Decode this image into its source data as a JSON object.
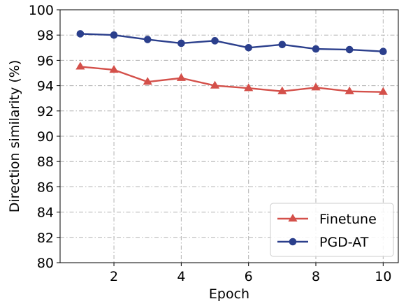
{
  "chart_data": {
    "type": "line",
    "title": "",
    "xlabel": "Epoch",
    "ylabel": "Direction similarity (%)",
    "x": [
      1,
      2,
      3,
      4,
      5,
      6,
      7,
      8,
      9,
      10
    ],
    "xlim": [
      0.4,
      10.45
    ],
    "ylim": [
      80,
      100
    ],
    "xticks": [
      2,
      4,
      6,
      8,
      10
    ],
    "yticks": [
      80,
      82,
      84,
      86,
      88,
      90,
      92,
      94,
      96,
      98,
      100
    ],
    "grid": true,
    "legend_position": "bottom-right",
    "series": [
      {
        "name": "Finetune",
        "marker": "triangle",
        "color": "#d4504a",
        "values": [
          95.5,
          95.25,
          94.3,
          94.6,
          94.0,
          93.8,
          93.55,
          93.85,
          93.55,
          93.5
        ]
      },
      {
        "name": "PGD-AT",
        "marker": "circle",
        "color": "#2b3f8c",
        "values": [
          98.1,
          98.0,
          97.65,
          97.35,
          97.55,
          97.0,
          97.25,
          96.9,
          96.85,
          96.7
        ]
      }
    ]
  }
}
